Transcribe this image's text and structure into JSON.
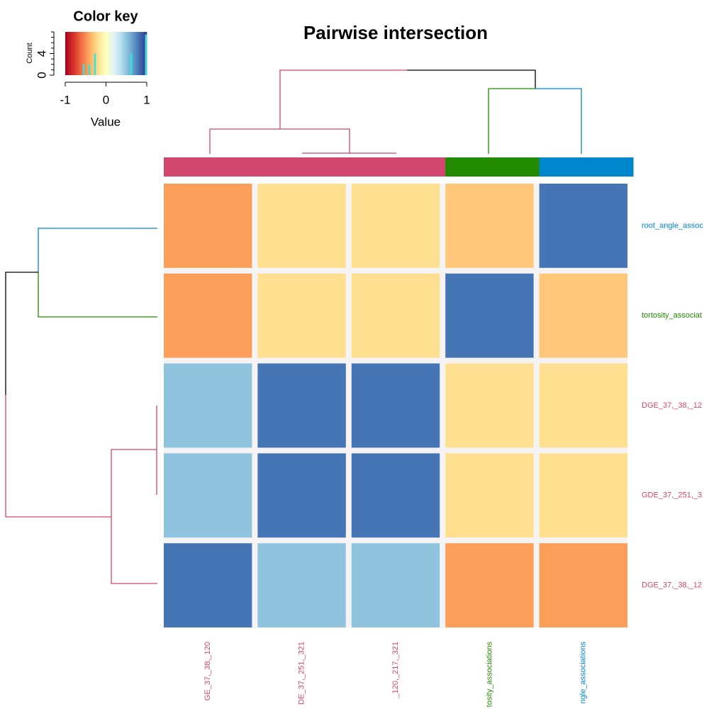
{
  "chart_data": {
    "type": "heatmap",
    "title": "Pairwise intersection",
    "rows": [
      "root_angle_assoc",
      "tortosity_associat",
      "DGE_37,_38,_12",
      "GDE_37,_251,_3",
      "DGE_37,_38,_12"
    ],
    "row_colors": [
      "#0086cc",
      "#238b00",
      "#d0466e",
      "#d0466e",
      "#d0466e"
    ],
    "columns": [
      "GE_37,_38,_120",
      "DE_37,_251,_321",
      "_120,_217,_321",
      "tosity_associations",
      "ngle_associations"
    ],
    "column_colors": [
      "#d0466e",
      "#d0466e",
      "#d0466e",
      "#238b00",
      "#0086cc"
    ],
    "values": [
      [
        -0.45,
        -0.2,
        -0.2,
        -0.3,
        0.8
      ],
      [
        -0.45,
        -0.2,
        -0.2,
        0.8,
        -0.3
      ],
      [
        0.5,
        0.8,
        0.8,
        -0.2,
        -0.2
      ],
      [
        0.5,
        0.8,
        0.8,
        -0.2,
        -0.2
      ],
      [
        0.8,
        0.5,
        0.5,
        -0.45,
        -0.45
      ]
    ],
    "colormap": [
      "#a50026",
      "#d73027",
      "#f46d43",
      "#fdae61",
      "#fee090",
      "#ffffbf",
      "#e0f3f8",
      "#abd9e9",
      "#74add1",
      "#4575b4",
      "#313695"
    ],
    "key": {
      "title": "Color key",
      "xlabel": "Value",
      "ylabel": "Count",
      "xlim": [
        -1,
        1
      ],
      "xticks": [
        -1,
        0,
        1
      ],
      "ylim": [
        0,
        8
      ],
      "yticks": [
        0,
        4
      ],
      "hist_color": "#2fe6d8",
      "hist": {
        "x": [
          -0.55,
          -0.41,
          -0.27,
          0.62,
          0.98
        ],
        "counts": [
          2,
          2,
          4,
          4,
          7.5
        ]
      }
    }
  }
}
